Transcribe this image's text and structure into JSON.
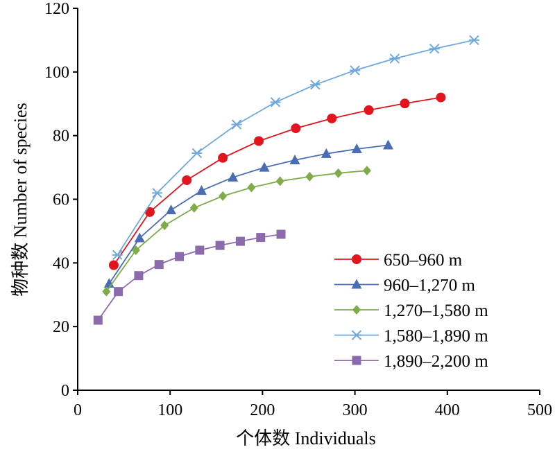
{
  "chart_data": {
    "type": "line",
    "xlabel": "个体数 Individuals",
    "ylabel": "物种数 Number of species",
    "xlim": [
      0,
      500
    ],
    "ylim": [
      0,
      120
    ],
    "xticks": [
      "0",
      "100",
      "200",
      "300",
      "400",
      "500"
    ],
    "yticks": [
      "0",
      "20",
      "40",
      "60",
      "80",
      "100",
      "120"
    ],
    "grid": false,
    "legend_position": "bottom-right",
    "series": [
      {
        "name": "650–960 m",
        "color": "#e2141e",
        "marker": "circle",
        "points": [
          [
            39,
            39.3
          ],
          [
            78,
            56
          ],
          [
            118,
            66
          ],
          [
            157,
            73
          ],
          [
            196,
            78.3
          ],
          [
            236,
            82.3
          ],
          [
            275,
            85.4
          ],
          [
            315,
            88
          ],
          [
            354,
            90.1
          ],
          [
            393,
            92
          ]
        ]
      },
      {
        "name": "960–1,270 m",
        "color": "#4a6cb5",
        "marker": "triangle",
        "points": [
          [
            34,
            33.5
          ],
          [
            67,
            47.8
          ],
          [
            101,
            56.6
          ],
          [
            134,
            62.7
          ],
          [
            168,
            66.9
          ],
          [
            202,
            70
          ],
          [
            235,
            72.3
          ],
          [
            269,
            74.3
          ],
          [
            302,
            75.8
          ],
          [
            336,
            77
          ]
        ]
      },
      {
        "name": "1,270–1,580 m",
        "color": "#7fab49",
        "marker": "diamond",
        "points": [
          [
            31,
            31
          ],
          [
            63,
            44
          ],
          [
            94,
            51.8
          ],
          [
            126,
            57.3
          ],
          [
            157,
            61
          ],
          [
            188,
            63.7
          ],
          [
            219,
            65.7
          ],
          [
            251,
            67.1
          ],
          [
            282,
            68.2
          ],
          [
            313,
            69
          ]
        ]
      },
      {
        "name": "1,580–1,890 m",
        "color": "#6fa8dc",
        "marker": "star",
        "points": [
          [
            43,
            42.5
          ],
          [
            86,
            62
          ],
          [
            129,
            74.5
          ],
          [
            172,
            83.5
          ],
          [
            214,
            90.5
          ],
          [
            257,
            96
          ],
          [
            300,
            100.5
          ],
          [
            343,
            104.2
          ],
          [
            386,
            107.3
          ],
          [
            429,
            110
          ]
        ]
      },
      {
        "name": "1,890–2,200 m",
        "color": "#8b6bab",
        "marker": "square",
        "points": [
          [
            22,
            22
          ],
          [
            44,
            31
          ],
          [
            66,
            36
          ],
          [
            88,
            39.5
          ],
          [
            110,
            42
          ],
          [
            132,
            44
          ],
          [
            154,
            45.5
          ],
          [
            176,
            46.8
          ],
          [
            198,
            48
          ],
          [
            220,
            49
          ]
        ]
      }
    ]
  }
}
